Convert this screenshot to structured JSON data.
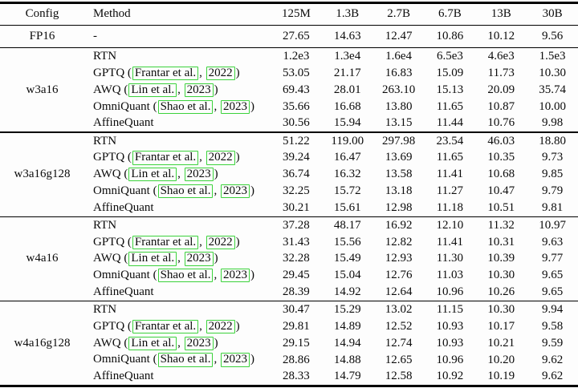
{
  "colors": {
    "citation_box": "#3bd23b",
    "rule": "#000000",
    "background": "#fdfdfd",
    "text": "#0b0b0b"
  },
  "table": {
    "columns": [
      "Config",
      "Method",
      "125M",
      "1.3B",
      "2.7B",
      "6.7B",
      "13B",
      "30B"
    ],
    "fp16_row": {
      "config": "FP16",
      "method": "-",
      "values": [
        "27.65",
        "14.63",
        "12.47",
        "10.86",
        "10.12",
        "9.56"
      ]
    },
    "groups": [
      {
        "config": "w3a16",
        "rows": [
          {
            "method": "RTN",
            "values": [
              "1.2e3",
              "1.3e4",
              "1.6e4",
              "6.5e3",
              "4.6e3",
              "1.5e3"
            ]
          },
          {
            "method": "GPTQ",
            "cite_authors": "Frantar et al.",
            "cite_year": "2022",
            "values": [
              "53.05",
              "21.17",
              "16.83",
              "15.09",
              "11.73",
              "10.30"
            ]
          },
          {
            "method": "AWQ",
            "cite_authors": "Lin et al.",
            "cite_year": "2023",
            "values": [
              "69.43",
              "28.01",
              "263.10",
              "15.13",
              "20.09",
              "35.74"
            ]
          },
          {
            "method": "OmniQuant",
            "cite_authors": "Shao et al.",
            "cite_year": "2023",
            "values": [
              "35.66",
              "16.68",
              "13.80",
              "11.65",
              "10.87",
              "10.00"
            ]
          },
          {
            "method": "AffineQuant",
            "values": [
              "30.56",
              "15.94",
              "13.15",
              "11.44",
              "10.76",
              "9.98"
            ]
          }
        ]
      },
      {
        "config": "w3a16g128",
        "rows": [
          {
            "method": "RTN",
            "values": [
              "51.22",
              "119.00",
              "297.98",
              "23.54",
              "46.03",
              "18.80"
            ]
          },
          {
            "method": "GPTQ",
            "cite_authors": "Frantar et al.",
            "cite_year": "2022",
            "values": [
              "39.24",
              "16.47",
              "13.69",
              "11.65",
              "10.35",
              "9.73"
            ]
          },
          {
            "method": "AWQ",
            "cite_authors": "Lin et al.",
            "cite_year": "2023",
            "values": [
              "36.74",
              "16.32",
              "13.58",
              "11.41",
              "10.68",
              "9.85"
            ]
          },
          {
            "method": "OmniQuant",
            "cite_authors": "Shao et al.",
            "cite_year": "2023",
            "values": [
              "32.25",
              "15.72",
              "13.18",
              "11.27",
              "10.47",
              "9.79"
            ]
          },
          {
            "method": "AffineQuant",
            "values": [
              "30.21",
              "15.61",
              "12.98",
              "11.18",
              "10.51",
              "9.81"
            ]
          }
        ]
      },
      {
        "config": "w4a16",
        "rows": [
          {
            "method": "RTN",
            "values": [
              "37.28",
              "48.17",
              "16.92",
              "12.10",
              "11.32",
              "10.97"
            ]
          },
          {
            "method": "GPTQ",
            "cite_authors": "Frantar et al.",
            "cite_year": "2022",
            "values": [
              "31.43",
              "15.56",
              "12.82",
              "11.41",
              "10.31",
              "9.63"
            ]
          },
          {
            "method": "AWQ",
            "cite_authors": "Lin et al.",
            "cite_year": "2023",
            "values": [
              "32.28",
              "15.49",
              "12.93",
              "11.30",
              "10.39",
              "9.77"
            ]
          },
          {
            "method": "OmniQuant",
            "cite_authors": "Shao et al.",
            "cite_year": "2023",
            "values": [
              "29.45",
              "15.04",
              "12.76",
              "11.03",
              "10.30",
              "9.65"
            ]
          },
          {
            "method": "AffineQuant",
            "values": [
              "28.39",
              "14.92",
              "12.64",
              "10.96",
              "10.26",
              "9.65"
            ]
          }
        ]
      },
      {
        "config": "w4a16g128",
        "rows": [
          {
            "method": "RTN",
            "values": [
              "30.47",
              "15.29",
              "13.02",
              "11.15",
              "10.30",
              "9.94"
            ]
          },
          {
            "method": "GPTQ",
            "cite_authors": "Frantar et al.",
            "cite_year": "2022",
            "values": [
              "29.81",
              "14.89",
              "12.52",
              "10.93",
              "10.17",
              "9.58"
            ]
          },
          {
            "method": "AWQ",
            "cite_authors": "Lin et al.",
            "cite_year": "2023",
            "values": [
              "29.15",
              "14.94",
              "12.74",
              "10.93",
              "10.21",
              "9.59"
            ]
          },
          {
            "method": "OmniQuant",
            "cite_authors": "Shao et al.",
            "cite_year": "2023",
            "values": [
              "28.86",
              "14.88",
              "12.65",
              "10.96",
              "10.20",
              "9.62"
            ]
          },
          {
            "method": "AffineQuant",
            "values": [
              "28.33",
              "14.79",
              "12.58",
              "10.92",
              "10.19",
              "9.62"
            ]
          }
        ]
      }
    ]
  }
}
